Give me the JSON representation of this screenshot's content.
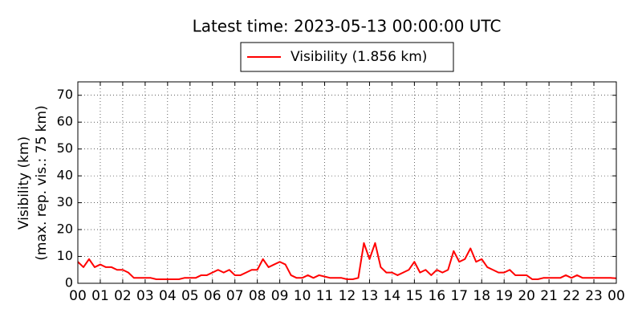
{
  "chart_data": {
    "type": "line",
    "title": "Latest time: 2023-05-13 00:00:00 UTC",
    "ylabel": [
      "Visibility (km)",
      "(max. rep. vis.: 75 km)"
    ],
    "xlim": [
      0,
      24
    ],
    "ylim": [
      0,
      75
    ],
    "xticks": [
      {
        "value": 0,
        "label": "00"
      },
      {
        "value": 1,
        "label": "01"
      },
      {
        "value": 2,
        "label": "02"
      },
      {
        "value": 3,
        "label": "03"
      },
      {
        "value": 4,
        "label": "04"
      },
      {
        "value": 5,
        "label": "05"
      },
      {
        "value": 6,
        "label": "06"
      },
      {
        "value": 7,
        "label": "07"
      },
      {
        "value": 8,
        "label": "08"
      },
      {
        "value": 9,
        "label": "09"
      },
      10,
      11,
      12,
      13,
      14,
      15,
      16,
      17,
      18,
      19,
      20,
      21,
      22,
      23,
      {
        "value": 24,
        "label": "00"
      }
    ],
    "yticks": [
      0,
      10,
      20,
      30,
      40,
      50,
      60,
      70
    ],
    "grid": true,
    "x": [
      0,
      0.25,
      0.5,
      0.75,
      1,
      1.25,
      1.5,
      1.75,
      2,
      2.25,
      2.5,
      2.75,
      3,
      3.25,
      3.5,
      3.75,
      4,
      4.25,
      4.5,
      4.75,
      5,
      5.25,
      5.5,
      5.75,
      6,
      6.25,
      6.5,
      6.75,
      7,
      7.25,
      7.5,
      7.75,
      8,
      8.25,
      8.5,
      8.75,
      9,
      9.25,
      9.5,
      9.75,
      10,
      10.25,
      10.5,
      10.75,
      11,
      11.25,
      11.5,
      11.75,
      12,
      12.25,
      12.5,
      12.75,
      13,
      13.25,
      13.5,
      13.75,
      14,
      14.25,
      14.5,
      14.75,
      15,
      15.25,
      15.5,
      15.75,
      16,
      16.25,
      16.5,
      16.75,
      17,
      17.25,
      17.5,
      17.75,
      18,
      18.25,
      18.5,
      18.75,
      19,
      19.25,
      19.5,
      19.75,
      20,
      20.25,
      20.5,
      20.75,
      21,
      21.25,
      21.5,
      21.75,
      22,
      22.25,
      22.5,
      22.75,
      23,
      23.25,
      23.5,
      23.75,
      24
    ],
    "series": [
      {
        "name": "Visibility (1.856 km)",
        "color": "#ff0000",
        "values": [
          8,
          6,
          9,
          6,
          7,
          6,
          6,
          5,
          5,
          4,
          2,
          2,
          2,
          2,
          1.5,
          1.5,
          1.5,
          1.5,
          1.5,
          2,
          2,
          2,
          3,
          3,
          4,
          5,
          4,
          5,
          3,
          3,
          4,
          5,
          5,
          9,
          6,
          7,
          8,
          7,
          3,
          2,
          2,
          3,
          2,
          3,
          2.5,
          2,
          2,
          2,
          1.5,
          1.5,
          2,
          15,
          9,
          15,
          6,
          4,
          4,
          3,
          4,
          5,
          8,
          4,
          5,
          3,
          5,
          4,
          5,
          12,
          8,
          9,
          13,
          8,
          9,
          6,
          5,
          4,
          4,
          5,
          3,
          3,
          3,
          1.5,
          1.5,
          2,
          2,
          2,
          2,
          3,
          2,
          3,
          2,
          2,
          2,
          2,
          2,
          2,
          1.856
        ]
      }
    ]
  }
}
